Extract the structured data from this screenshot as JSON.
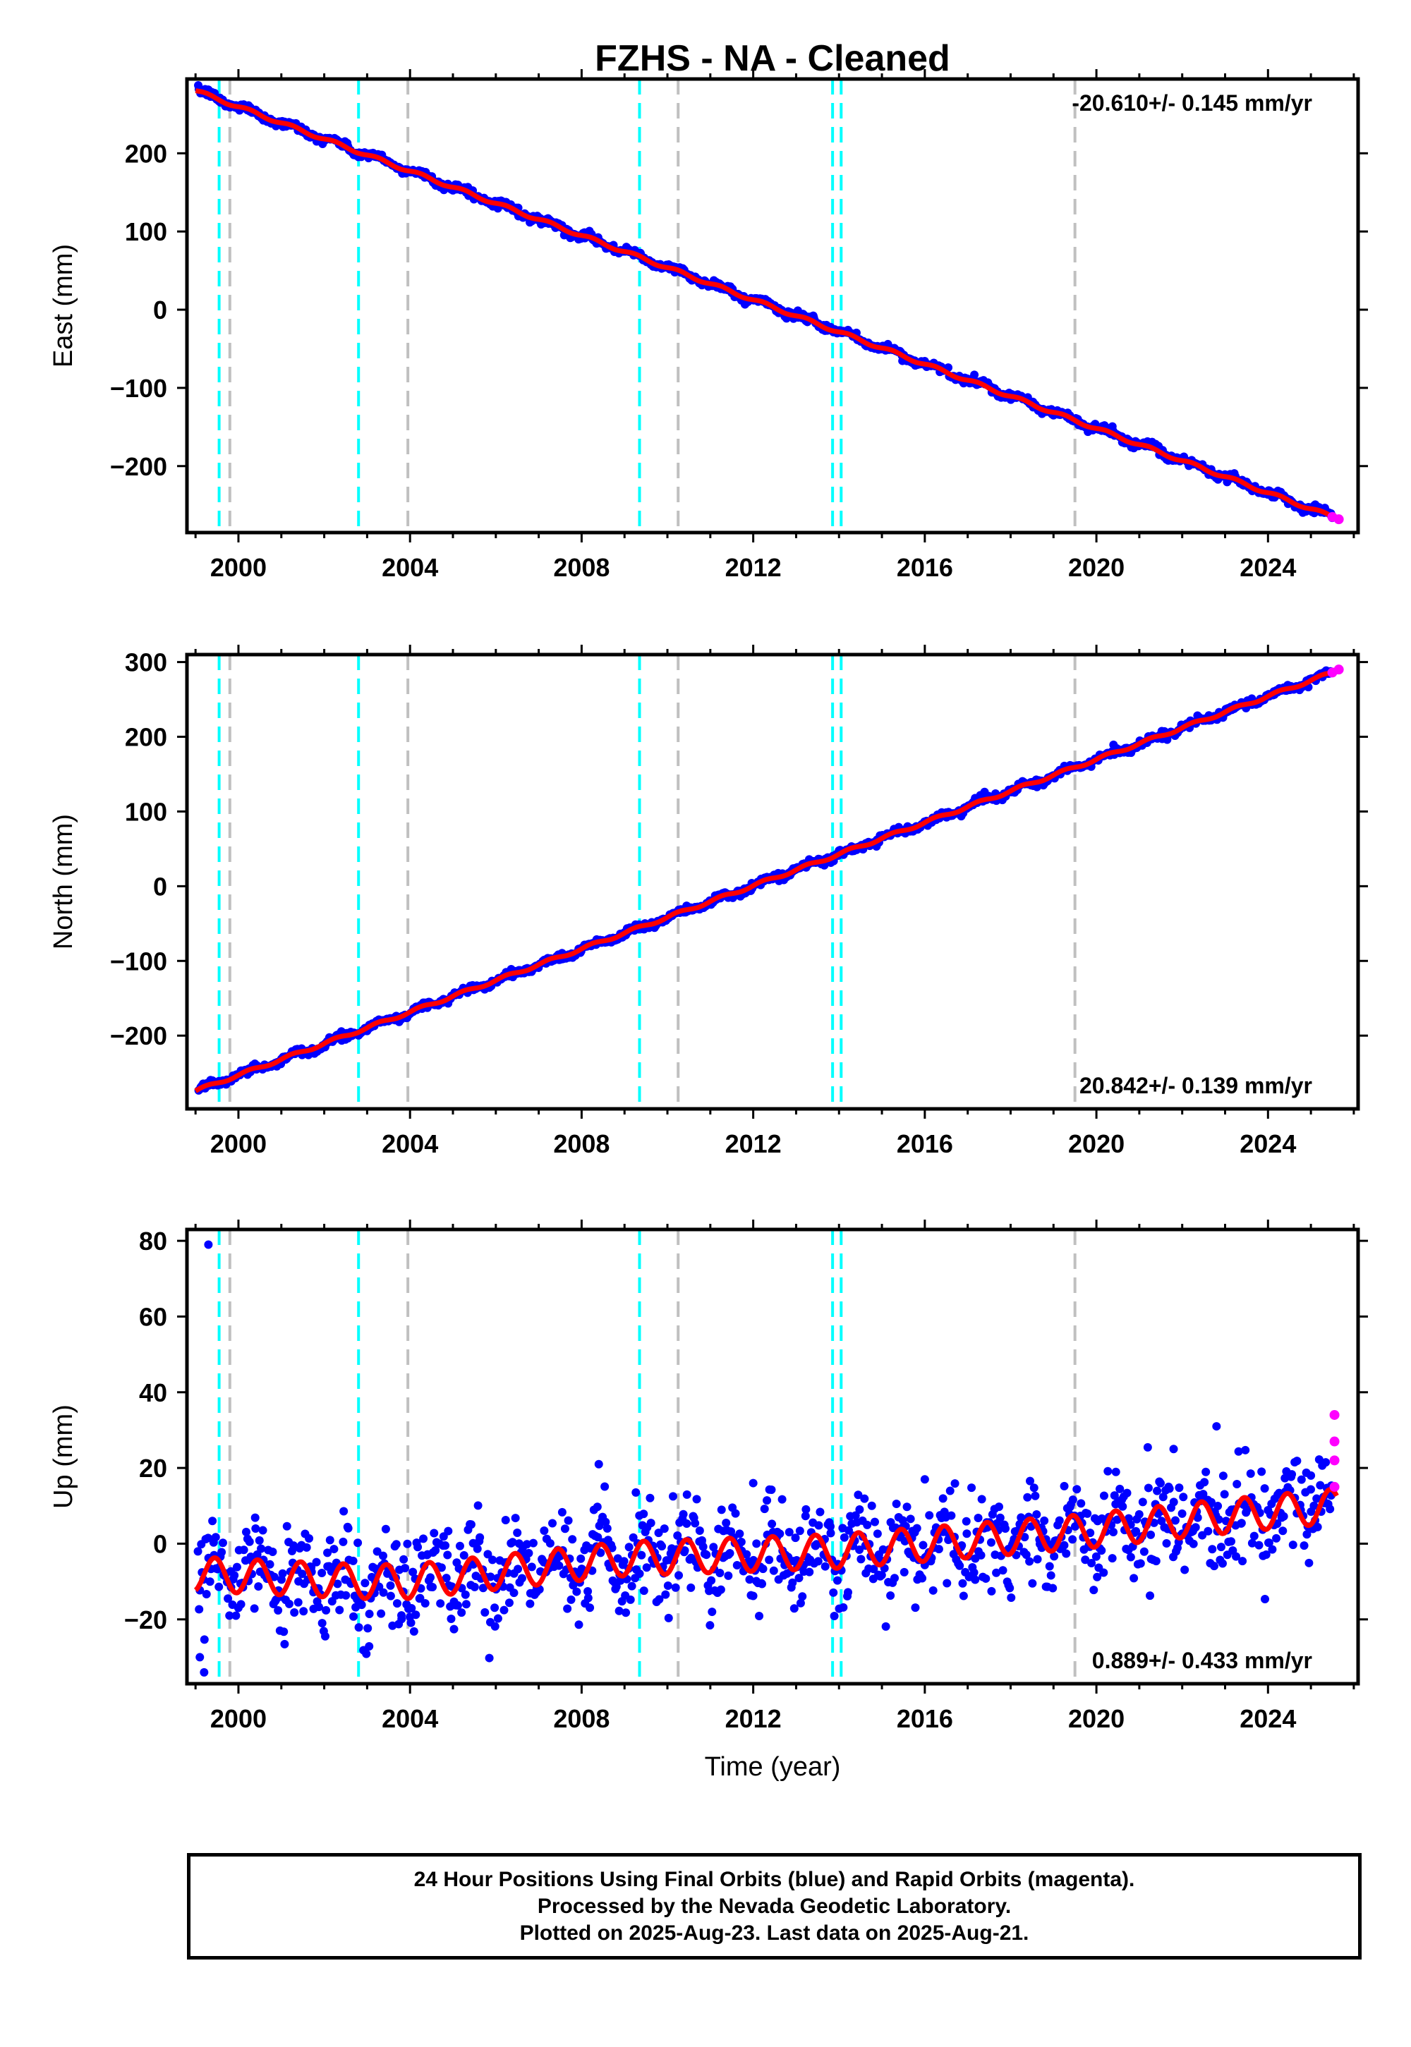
{
  "title": "FZHS  - NA - Cleaned",
  "colors": {
    "final_orbits": "#0000ff",
    "rapid_orbits": "#ff00ff",
    "model": "#ff0000",
    "antenna_change": "#00ffff",
    "equipment_change": "#c0c0c0"
  },
  "footer": {
    "line1": "24 Hour Positions Using Final Orbits (blue) and Rapid Orbits (magenta).",
    "line2": "Processed by the Nevada Geodetic Laboratory.",
    "line3": "Plotted on 2025-Aug-23. Last data on 2025-Aug-21."
  },
  "chart_data": [
    {
      "type": "scatter",
      "ylabel": "East (mm)",
      "xlabel": "",
      "xlim": [
        1998.8,
        2026.1
      ],
      "ylim": [
        -285,
        295
      ],
      "x_ticks": [
        2000,
        2004,
        2008,
        2012,
        2016,
        2020,
        2024
      ],
      "x_tick_labels": [
        "2000",
        "2004",
        "2008",
        "2012",
        "2016",
        "2020",
        "2024"
      ],
      "y_ticks": [
        -200,
        -100,
        0,
        100,
        200
      ],
      "y_tick_labels": [
        "−200",
        "−100",
        "0",
        "100",
        "200"
      ],
      "rate_label": "-20.610+/- 0.145 mm/yr",
      "rate_position": "top-right",
      "series": [
        {
          "name": "Final Orbits",
          "x": [
            1999.0,
            2001.0,
            2003.0,
            2005.0,
            2007.0,
            2009.0,
            2011.0,
            2013.0,
            2015.0,
            2017.0,
            2019.0,
            2021.0,
            2023.0,
            2025.5
          ],
          "values": [
            280,
            240,
            198,
            150,
            112,
            70,
            30,
            -12,
            -50,
            -90,
            -130,
            -175,
            -215,
            -262
          ]
        },
        {
          "name": "Rapid Orbits",
          "x": [
            2025.5,
            2025.65
          ],
          "values": [
            -265,
            -268
          ]
        },
        {
          "name": "Model",
          "x": [
            1999.0,
            2025.6
          ],
          "values": [
            280,
            -267
          ]
        }
      ],
      "vlines_cyan": [
        1999.55,
        2002.8,
        2009.35,
        2013.85,
        2014.05
      ],
      "vlines_gray": [
        1999.8,
        2003.95,
        2010.25,
        2019.5
      ]
    },
    {
      "type": "scatter",
      "ylabel": "North (mm)",
      "xlabel": "",
      "xlim": [
        1998.8,
        2026.1
      ],
      "ylim": [
        -298,
        310
      ],
      "x_ticks": [
        2000,
        2004,
        2008,
        2012,
        2016,
        2020,
        2024
      ],
      "x_tick_labels": [
        "2000",
        "2004",
        "2008",
        "2012",
        "2016",
        "2020",
        "2024"
      ],
      "y_ticks": [
        -200,
        -100,
        0,
        100,
        200,
        300
      ],
      "y_tick_labels": [
        "−200",
        "−100",
        "0",
        "100",
        "200",
        "300"
      ],
      "rate_label": "20.842+/- 0.139 mm/yr",
      "rate_position": "bottom-right",
      "series": [
        {
          "name": "Final Orbits",
          "x": [
            1999.0,
            2001.0,
            2003.0,
            2005.0,
            2007.0,
            2009.0,
            2011.0,
            2013.0,
            2015.0,
            2017.0,
            2019.0,
            2021.0,
            2023.0,
            2025.5
          ],
          "values": [
            -275,
            -235,
            -195,
            -155,
            -112,
            -65,
            -30,
            15,
            55,
            95,
            135,
            180,
            225,
            285
          ]
        },
        {
          "name": "Rapid Orbits",
          "x": [
            2025.5,
            2025.65
          ],
          "values": [
            286,
            290
          ]
        },
        {
          "name": "Model",
          "x": [
            1999.0,
            2025.6
          ],
          "values": [
            -274,
            288
          ]
        }
      ],
      "vlines_cyan": [
        1999.55,
        2002.8,
        2009.35,
        2013.85,
        2014.05
      ],
      "vlines_gray": [
        1999.8,
        2003.95,
        2010.25,
        2019.5
      ]
    },
    {
      "type": "scatter",
      "ylabel": "Up (mm)",
      "xlabel": "Time (year)",
      "xlim": [
        1998.8,
        2026.1
      ],
      "ylim": [
        -37,
        83
      ],
      "x_ticks": [
        2000,
        2004,
        2008,
        2012,
        2016,
        2020,
        2024
      ],
      "x_tick_labels": [
        "2000",
        "2004",
        "2008",
        "2012",
        "2016",
        "2020",
        "2024"
      ],
      "y_ticks": [
        -20,
        0,
        20,
        40,
        60,
        80
      ],
      "y_tick_labels": [
        "−20",
        "0",
        "20",
        "40",
        "60",
        "80"
      ],
      "rate_label": "0.889+/- 0.433 mm/yr",
      "rate_position": "bottom-right",
      "series": [
        {
          "name": "Final Orbits",
          "x": [
            1999.3,
            1999.1,
            1999.2,
            2008.4,
            2012.0,
            2016.0,
            2021.8,
            2022.8,
            2025.0
          ],
          "values": [
            79,
            -30,
            -34,
            21,
            16,
            17,
            25,
            31,
            18
          ]
        },
        {
          "name": "Rapid Orbits",
          "x": [
            2025.55,
            2025.55,
            2025.55,
            2025.55
          ],
          "values": [
            34,
            27,
            22,
            15
          ]
        },
        {
          "name": "Model",
          "x": [
            1999.0,
            2002.8,
            2004.0,
            2009.0,
            2014.0,
            2019.5,
            2022.8,
            2025.6
          ],
          "values": [
            -8,
            -10,
            -10,
            -4,
            -2,
            3,
            7,
            10
          ]
        }
      ],
      "model_annual_amplitude": 4.5,
      "vlines_cyan": [
        1999.55,
        2002.8,
        2009.35,
        2013.85,
        2014.05
      ],
      "vlines_gray": [
        1999.8,
        2003.95,
        2010.25,
        2019.5
      ]
    }
  ]
}
